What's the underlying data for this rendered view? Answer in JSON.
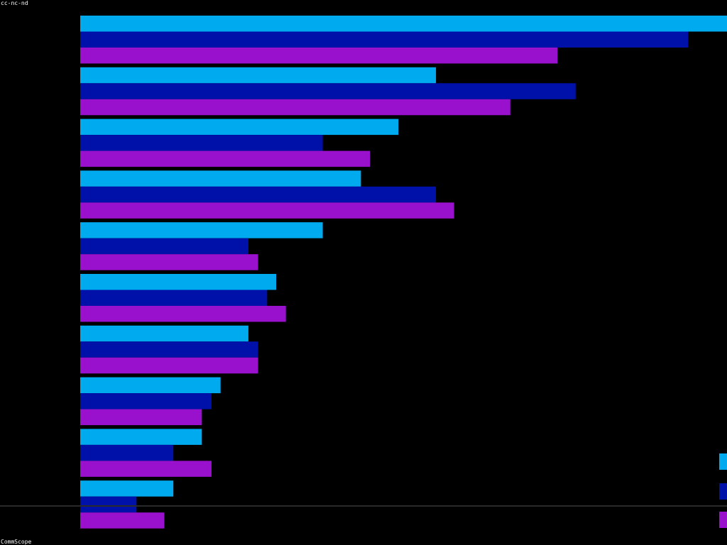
{
  "license_text": "cc-nc-nd",
  "credit_text": "CommScope",
  "colors": {
    "background": "#000000",
    "series": [
      "#00aaee",
      "#0011aa",
      "#9911cc"
    ]
  },
  "chart_data": {
    "type": "bar",
    "orientation": "horizontal",
    "title": "",
    "xlabel": "",
    "ylabel": "",
    "categories": [
      "",
      "",
      "",
      "",
      "",
      "",
      "",
      "",
      "",
      ""
    ],
    "xlim": [
      0,
      100
    ],
    "grid": false,
    "legend_position": "bottom-right",
    "series": [
      {
        "values": [
          100,
          55,
          49.2,
          43.4,
          37.5,
          30.3,
          26,
          21.7,
          18.8,
          14.4
        ]
      },
      {
        "values": [
          94,
          76.6,
          37.5,
          55,
          26,
          28.9,
          27.5,
          20.3,
          14.4,
          8.7
        ]
      },
      {
        "values": [
          73.8,
          66.5,
          44.8,
          57.8,
          27.5,
          31.8,
          27.5,
          18.8,
          20.3,
          13
        ]
      }
    ]
  }
}
